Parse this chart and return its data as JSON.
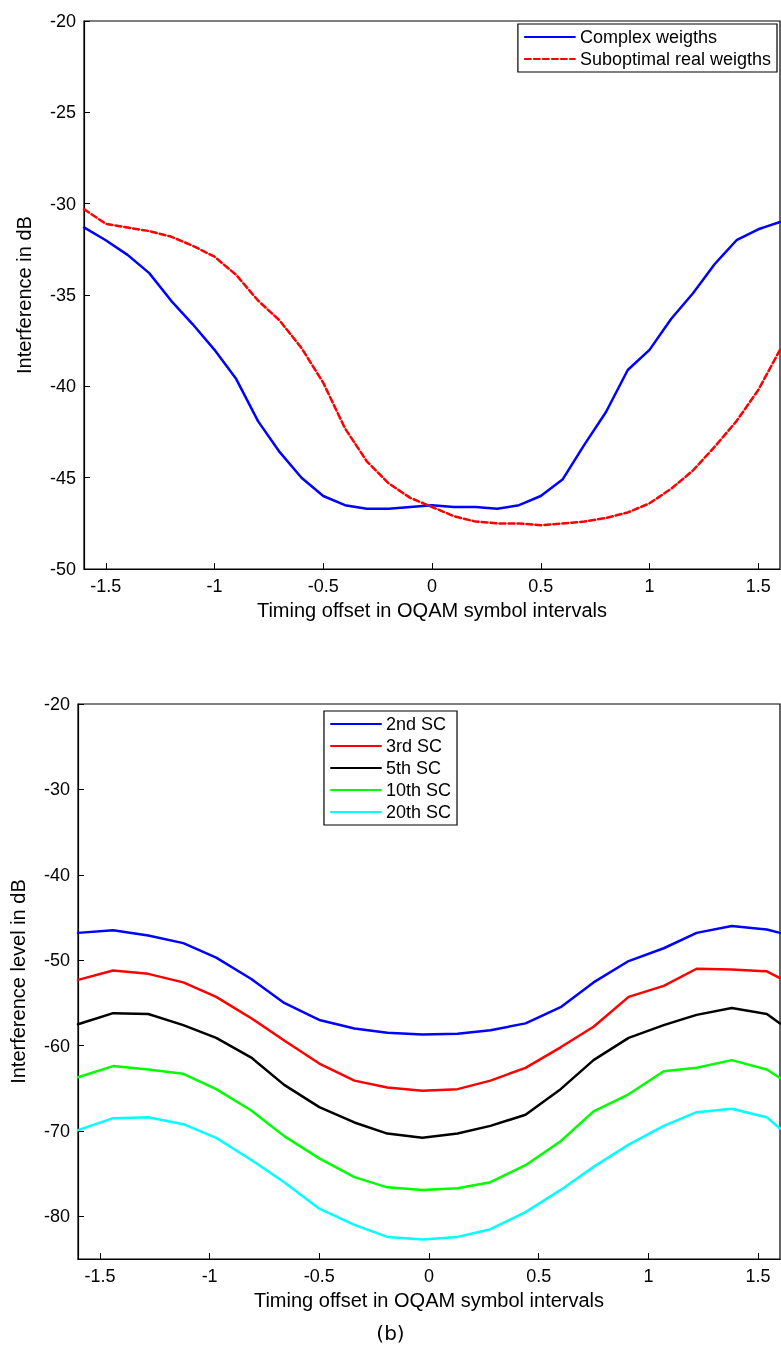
{
  "chart_data": [
    {
      "type": "line",
      "xlabel": "Timing offset in OQAM symbol intervals",
      "ylabel": "Interference in dB",
      "x": [
        -1.6,
        -1.5,
        -1.4,
        -1.3,
        -1.2,
        -1.1,
        -1.0,
        -0.9,
        -0.8,
        -0.7,
        -0.6,
        -0.5,
        -0.4,
        -0.3,
        -0.2,
        -0.1,
        0,
        0.1,
        0.2,
        0.3,
        0.4,
        0.5,
        0.6,
        0.7,
        0.8,
        0.9,
        1.0,
        1.1,
        1.2,
        1.3,
        1.4,
        1.5,
        1.6
      ],
      "series": [
        {
          "name": "Complex weigths",
          "color": "#0000ff",
          "line_style": "solid",
          "values": [
            -31.3,
            -32.0,
            -32.8,
            -33.8,
            -35.3,
            -36.6,
            -38.0,
            -39.6,
            -41.9,
            -43.6,
            -45.0,
            -46.0,
            -46.5,
            -46.7,
            -46.7,
            -46.6,
            -46.5,
            -46.6,
            -46.6,
            -46.7,
            -46.5,
            -46.0,
            -45.1,
            -43.2,
            -41.4,
            -39.1,
            -38.0,
            -36.3,
            -34.9,
            -33.3,
            -32.0,
            -31.4,
            -31.0
          ]
        },
        {
          "name": "Suboptimal real weigths",
          "color": "#ff0000",
          "line_style": "dashed",
          "values": [
            -30.3,
            -31.1,
            -31.3,
            -31.5,
            -31.8,
            -32.3,
            -32.9,
            -33.9,
            -35.3,
            -36.4,
            -37.9,
            -39.8,
            -42.3,
            -44.1,
            -45.3,
            -46.1,
            -46.6,
            -47.1,
            -47.4,
            -47.5,
            -47.5,
            -47.6,
            -47.5,
            -47.4,
            -47.2,
            -46.9,
            -46.4,
            -45.6,
            -44.6,
            -43.3,
            -41.9,
            -40.2,
            -38.0
          ]
        }
      ],
      "xlim": [
        -1.6,
        1.6
      ],
      "xticks": [
        -1.5,
        -1,
        -0.5,
        0,
        0.5,
        1,
        1.5
      ],
      "ylim": [
        -50,
        -20
      ],
      "yticks": [
        -50,
        -45,
        -40,
        -35,
        -30,
        -25,
        -20
      ],
      "grid": false,
      "legend": "top right",
      "marker": "none"
    },
    {
      "type": "line",
      "xlabel": "Timing offset in OQAM symbol intervals",
      "ylabel": "Interference level in dB",
      "x": [
        -1.6,
        -1.44,
        -1.28,
        -1.12,
        -0.97,
        -0.81,
        -0.66,
        -0.5,
        -0.34,
        -0.19,
        -0.03,
        0.13,
        0.28,
        0.44,
        0.6,
        0.75,
        0.91,
        1.07,
        1.22,
        1.38,
        1.54,
        1.6
      ],
      "series": [
        {
          "name": "2nd SC",
          "color": "#0000ff",
          "line_style": "solid",
          "values": [
            -46.8,
            -46.5,
            -47.1,
            -48.0,
            -49.7,
            -52.2,
            -55.0,
            -57.0,
            -58.0,
            -58.5,
            -58.7,
            -58.6,
            -58.2,
            -57.4,
            -55.5,
            -52.6,
            -50.1,
            -48.6,
            -46.8,
            -46.0,
            -46.4,
            -46.8
          ]
        },
        {
          "name": "3rd SC",
          "color": "#ff0000",
          "line_style": "solid",
          "values": [
            -52.3,
            -51.2,
            -51.6,
            -52.6,
            -54.3,
            -56.8,
            -59.4,
            -62.1,
            -64.1,
            -64.9,
            -65.3,
            -65.1,
            -64.1,
            -62.6,
            -60.2,
            -57.8,
            -54.3,
            -53.0,
            -51.0,
            -51.1,
            -51.3,
            -52.1
          ]
        },
        {
          "name": "5th SC",
          "color": "#000000",
          "line_style": "solid",
          "values": [
            -57.5,
            -56.2,
            -56.3,
            -57.6,
            -59.1,
            -61.4,
            -64.6,
            -67.2,
            -69.0,
            -70.3,
            -70.8,
            -70.3,
            -69.4,
            -68.1,
            -65.1,
            -61.7,
            -59.1,
            -57.6,
            -56.4,
            -55.6,
            -56.3,
            -57.4
          ]
        },
        {
          "name": "10th SC",
          "color": "#00ff00",
          "line_style": "solid",
          "values": [
            -63.7,
            -62.4,
            -62.8,
            -63.3,
            -65.1,
            -67.6,
            -70.6,
            -73.2,
            -75.4,
            -76.6,
            -76.9,
            -76.7,
            -76.0,
            -74.0,
            -71.2,
            -67.7,
            -65.7,
            -63.0,
            -62.6,
            -61.7,
            -62.8,
            -63.8
          ]
        },
        {
          "name": "20th SC",
          "color": "#00ffff",
          "line_style": "solid",
          "values": [
            -69.9,
            -68.5,
            -68.4,
            -69.2,
            -70.8,
            -73.4,
            -76.0,
            -79.1,
            -81.0,
            -82.4,
            -82.7,
            -82.4,
            -81.5,
            -79.5,
            -76.9,
            -74.2,
            -71.6,
            -69.4,
            -67.8,
            -67.4,
            -68.4,
            -69.7
          ]
        }
      ],
      "xlim": [
        -1.6,
        1.6
      ],
      "xticks": [
        -1.5,
        -1,
        -0.5,
        0,
        0.5,
        1,
        1.5
      ],
      "ylim": [
        -85,
        -20
      ],
      "yticks": [
        -80,
        -70,
        -60,
        -50,
        -40,
        -30,
        -20
      ],
      "grid": false,
      "legend": "top",
      "marker": "none",
      "annotations": [
        "(b)"
      ]
    }
  ]
}
